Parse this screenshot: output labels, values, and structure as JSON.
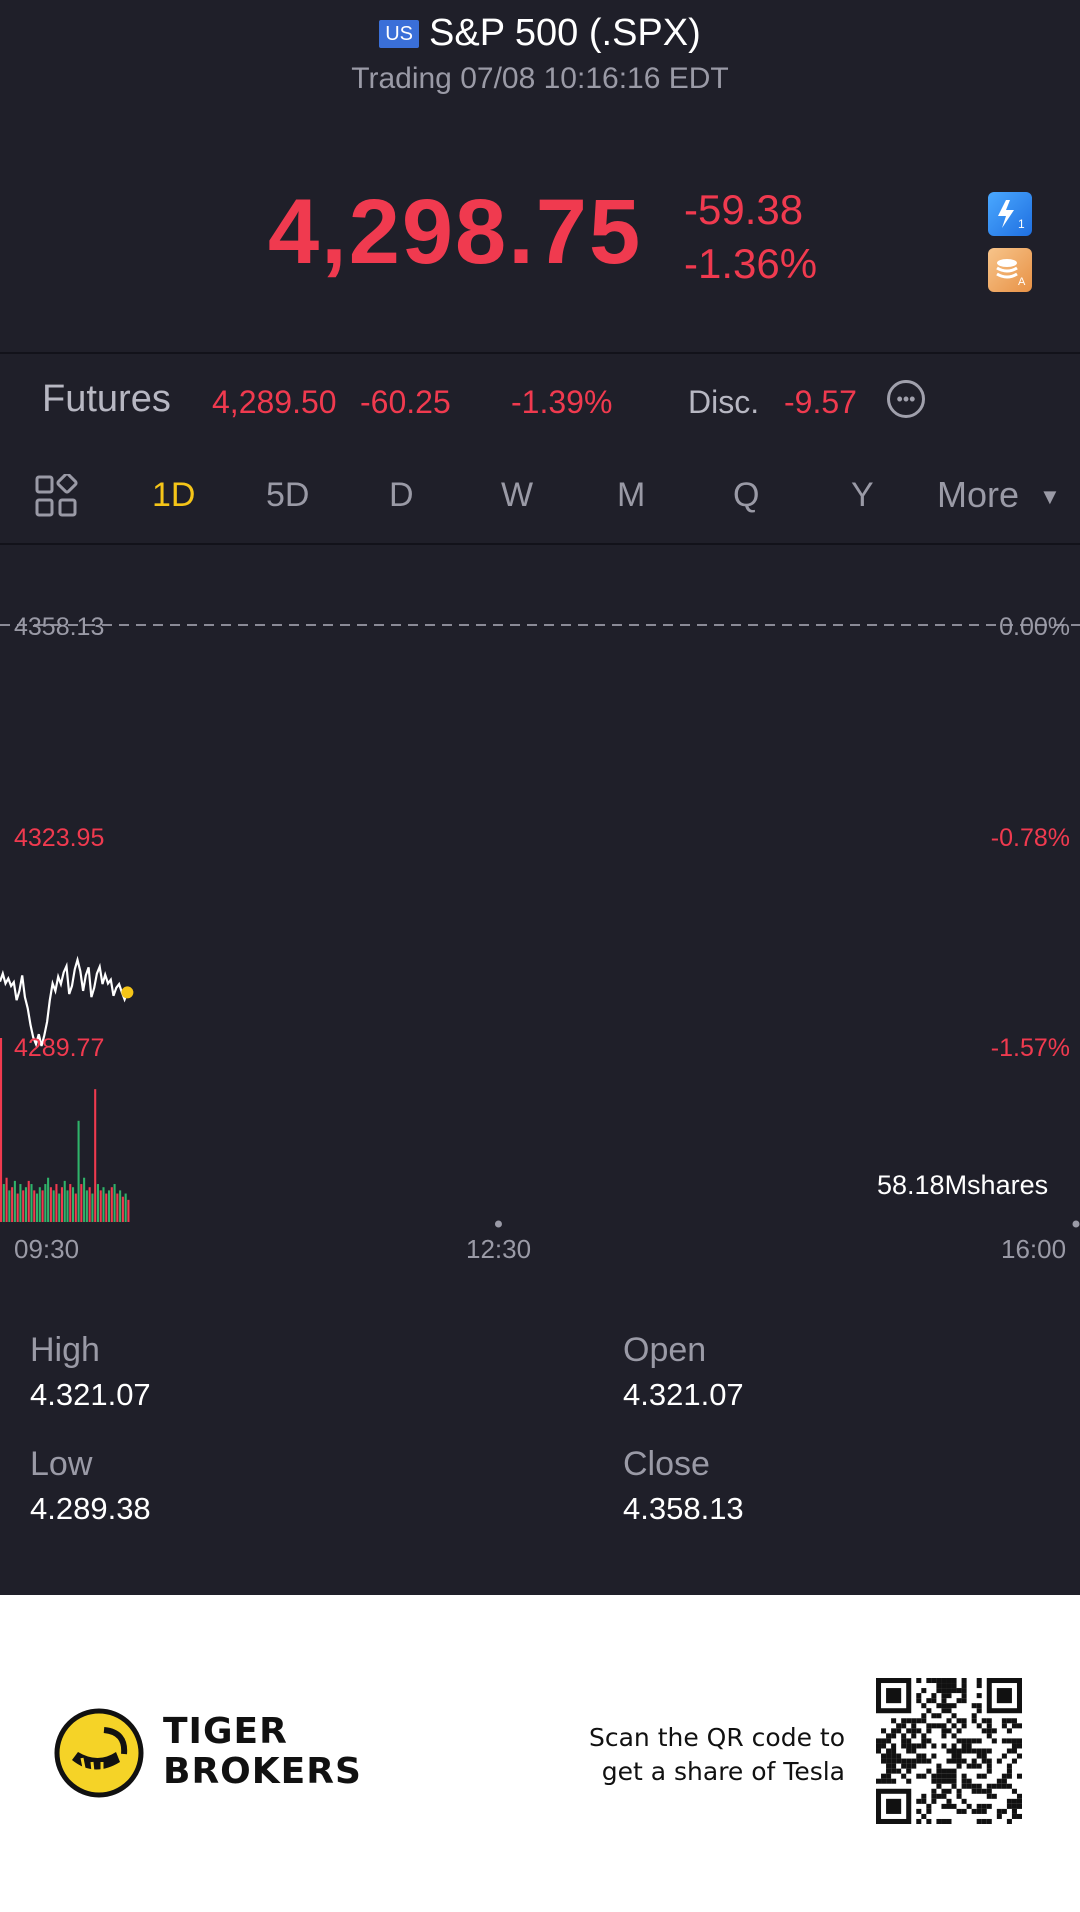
{
  "header": {
    "flag": "US",
    "title": "S&P 500 (.SPX)",
    "subtitle": "Trading 07/08 10:16:16 EDT"
  },
  "quote": {
    "price": "4,298.75",
    "change": "-59.38",
    "change_pct": "-1.36%",
    "icons": [
      "lightning-level1-icon",
      "stack-a-icon"
    ]
  },
  "futures": {
    "label": "Futures",
    "price": "4,289.50",
    "change": "-60.25",
    "change_pct": "-1.39%",
    "disc_label": "Disc.",
    "disc_value": "-9.57",
    "more_icon": "ellipsis-circle-icon"
  },
  "tabs": {
    "items": [
      "1D",
      "5D",
      "D",
      "W",
      "M",
      "Q",
      "Y"
    ],
    "active": "1D",
    "more_label": "More"
  },
  "chart": {
    "y_labels_left": [
      "4358.13",
      "4323.95",
      "4289.77"
    ],
    "y_labels_right": [
      "0.00%",
      "-0.78%",
      "-1.57%"
    ],
    "volume_label": "58.18Mshares",
    "time_labels": [
      "09:30",
      "12:30",
      "16:00"
    ]
  },
  "chart_data": {
    "type": "line",
    "title": "",
    "xlabel": "",
    "ylabel": "",
    "x_ticks": [
      "09:30",
      "12:30",
      "16:00"
    ],
    "ylim": [
      4289.77,
      4358.13
    ],
    "y_ticks": [
      4358.13,
      4323.95,
      4289.77
    ],
    "reference_line": 4358.13,
    "series": [
      {
        "x": [
          "09:30",
          "09:31",
          "09:32",
          "09:33",
          "09:34",
          "09:35",
          "09:36",
          "09:37",
          "09:38",
          "09:39",
          "09:40",
          "09:41",
          "09:42",
          "09:43",
          "09:44",
          "09:45",
          "09:46",
          "09:47",
          "09:48",
          "09:49",
          "09:50",
          "09:51",
          "09:52",
          "09:53",
          "09:54",
          "09:55",
          "09:56",
          "09:57",
          "09:58",
          "09:59",
          "10:00",
          "10:01",
          "10:02",
          "10:03",
          "10:04",
          "10:05",
          "10:06",
          "10:07",
          "10:08",
          "10:09",
          "10:10",
          "10:11",
          "10:12",
          "10:13",
          "10:14",
          "10:15",
          "10:16"
        ],
        "values": [
          4300.5,
          4301.8,
          4300.2,
          4301.0,
          4299.8,
          4300.4,
          4297.5,
          4299.0,
          4301.5,
          4298.0,
          4296.2,
          4293.5,
          4291.5,
          4290.4,
          4292.0,
          4290.1,
          4291.8,
          4294.0,
          4297.5,
          4300.2,
          4299.0,
          4301.3,
          4300.1,
          4302.0,
          4303.0,
          4298.5,
          4299.8,
          4302.5,
          4304.0,
          4302.2,
          4299.0,
          4301.5,
          4302.8,
          4298.0,
          4299.5,
          4301.8,
          4302.9,
          4300.1,
          4301.6,
          4300.2,
          4300.8,
          4298.2,
          4299.5,
          4300.1,
          4298.8,
          4297.6,
          4298.75
        ]
      }
    ],
    "volume": {
      "x": [
        "09:30",
        "09:31",
        "09:32",
        "09:33",
        "09:34",
        "09:35",
        "09:36",
        "09:37",
        "09:38",
        "09:39",
        "09:40",
        "09:41",
        "09:42",
        "09:43",
        "09:44",
        "09:45",
        "09:46",
        "09:47",
        "09:48",
        "09:49",
        "09:50",
        "09:51",
        "09:52",
        "09:53",
        "09:54",
        "09:55",
        "09:56",
        "09:57",
        "09:58",
        "09:59",
        "10:00",
        "10:01",
        "10:02",
        "10:03",
        "10:04",
        "10:05",
        "10:06",
        "10:07",
        "10:08",
        "10:09",
        "10:10",
        "10:11",
        "10:12",
        "10:13",
        "10:14",
        "10:15",
        "10:16"
      ],
      "values": [
        58.18,
        12,
        14,
        10,
        11,
        13,
        9,
        12,
        10,
        11,
        13,
        12,
        10,
        9,
        11,
        10,
        12,
        14,
        11,
        10,
        12,
        9,
        11,
        13,
        10,
        12,
        11,
        9,
        32,
        12,
        14,
        10,
        11,
        9,
        42,
        12,
        10,
        11,
        9,
        10,
        11,
        12,
        9,
        10,
        8,
        9,
        7
      ],
      "up": [
        false,
        true,
        false,
        true,
        false,
        true,
        false,
        true,
        false,
        true,
        false,
        true,
        false,
        true,
        true,
        false,
        true,
        true,
        false,
        true,
        false,
        true,
        false,
        true,
        true,
        false,
        true,
        false,
        true,
        false,
        true,
        true,
        false,
        true,
        false,
        true,
        false,
        true,
        false,
        true,
        false,
        true,
        false,
        true,
        false,
        true,
        false
      ]
    },
    "max_volume_label": "58.18Mshares"
  },
  "stats": {
    "high_label": "High",
    "high_value": "4.321.07",
    "open_label": "Open",
    "open_value": "4.321.07",
    "low_label": "Low",
    "low_value": "4.289.38",
    "close_label": "Close",
    "close_value": "4.358.13"
  },
  "footer": {
    "brand_line1": "TIGER",
    "brand_line2": "BROKERS",
    "scan_line1": "Scan the QR code to",
    "scan_line2": "get a share of Tesla",
    "logo_icon": "tiger-logo-icon",
    "qr_icon": "qr-code-icon"
  },
  "colors": {
    "background": "#1f1f29",
    "down": "#f03a4f",
    "up": "#2fb36a",
    "accent": "#f5c518",
    "muted": "#9a9aa6"
  }
}
